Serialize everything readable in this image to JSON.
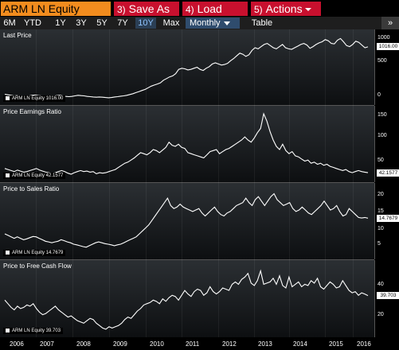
{
  "toolbar": {
    "ticker": "ARM LN Equity",
    "save_num": "3)",
    "save_label": "Save As",
    "load_num": "4)",
    "load_label": "Load",
    "actions_num": "5)",
    "actions_label": "Actions"
  },
  "ranges": [
    "6M",
    "YTD",
    "1Y",
    "3Y",
    "5Y",
    "7Y",
    "10Y",
    "Max"
  ],
  "active_range": "10Y",
  "frequency": "Monthly",
  "table_label": "Table",
  "more_label": "»",
  "years": [
    "2006",
    "2007",
    "2008",
    "2009",
    "2010",
    "2011",
    "2012",
    "2013",
    "2014",
    "2015",
    "2016"
  ],
  "panels": [
    {
      "title": "Last Price",
      "legend": "ARM LN Equity  1016.00",
      "last_value": "1016.00",
      "ticks": [
        "1000",
        "500",
        "0"
      ]
    },
    {
      "title": "Price Earnings Ratio",
      "legend": "ARM LN Equity  42.1577",
      "last_value": "42.1577",
      "ticks": [
        "150",
        "100",
        "50"
      ]
    },
    {
      "title": "Price to Sales Ratio",
      "legend": "ARM LN Equity  14.7679",
      "last_value": "14.7679",
      "ticks": [
        "20",
        "15",
        "10",
        "5"
      ]
    },
    {
      "title": "Price to Free Cash Flow",
      "legend": "ARM LN Equity  39.703",
      "last_value": "39.703",
      "ticks": [
        "40",
        "20"
      ]
    }
  ],
  "chart_data": [
    {
      "type": "line",
      "title": "Last Price",
      "series": [
        {
          "name": "ARM LN Equity",
          "values": [
            140,
            130,
            120,
            110,
            115,
            100,
            95,
            105,
            110,
            120,
            125,
            115,
            110,
            105,
            100,
            95,
            105,
            115,
            120,
            110,
            100,
            95,
            100,
            110,
            120,
            115,
            110,
            100,
            95,
            90,
            85,
            90,
            85,
            80,
            75,
            80,
            90,
            95,
            105,
            110,
            120,
            135,
            150,
            170,
            190,
            210,
            230,
            260,
            290,
            310,
            330,
            350,
            400,
            430,
            460,
            480,
            520,
            600,
            620,
            610,
            590,
            600,
            620,
            640,
            600,
            580,
            620,
            650,
            700,
            720,
            700,
            680,
            690,
            710,
            760,
            800,
            850,
            900,
            880,
            840,
            870,
            950,
            1000,
            980,
            1020,
            1060,
            1080,
            1040,
            1000,
            980,
            1020,
            1060,
            1000,
            980,
            970,
            1000,
            1030,
            1060,
            1080,
            1050,
            990,
            1020,
            1060,
            1090,
            1110,
            1150,
            1130,
            1080,
            1070,
            1140,
            1170,
            1110,
            1040,
            1020,
            1060,
            1120,
            1100,
            1050,
            1000,
            1016
          ]
        }
      ],
      "ylim": [
        0,
        1250
      ]
    },
    {
      "type": "line",
      "title": "Price Earnings Ratio",
      "series": [
        {
          "name": "ARM LN Equity",
          "values": [
            50,
            48,
            46,
            44,
            47,
            45,
            43,
            44,
            46,
            48,
            50,
            47,
            45,
            43,
            42,
            40,
            42,
            44,
            46,
            44,
            41,
            39,
            42,
            44,
            46,
            44,
            45,
            43,
            44,
            40,
            42,
            41,
            42,
            44,
            46,
            48,
            52,
            56,
            60,
            62,
            66,
            70,
            75,
            80,
            78,
            76,
            80,
            86,
            84,
            80,
            85,
            90,
            100,
            94,
            92,
            96,
            90,
            88,
            80,
            78,
            76,
            74,
            72,
            70,
            76,
            82,
            84,
            86,
            78,
            82,
            86,
            88,
            92,
            96,
            100,
            104,
            110,
            104,
            100,
            108,
            118,
            126,
            154,
            140,
            120,
            104,
            92,
            86,
            96,
            84,
            78,
            82,
            74,
            72,
            68,
            64,
            66,
            60,
            62,
            58,
            60,
            56,
            58,
            54,
            52,
            50,
            48,
            46,
            48,
            44,
            42,
            44,
            46,
            44,
            43,
            42
          ]
        }
      ],
      "ylim": [
        30,
        160
      ]
    },
    {
      "type": "line",
      "title": "Price to Sales Ratio",
      "series": [
        {
          "name": "ARM LN Equity",
          "values": [
            9.5,
            9,
            8.5,
            8,
            8.5,
            8,
            7.5,
            7.8,
            8.2,
            8.6,
            8.5,
            8,
            7.5,
            7,
            6.8,
            6.5,
            6.8,
            7,
            7.5,
            7.2,
            6.8,
            6.5,
            6,
            5.8,
            5.5,
            5.2,
            5,
            5.5,
            6,
            6.5,
            6.8,
            6.5,
            6.2,
            6,
            5.8,
            5.5,
            5.8,
            6,
            6.5,
            7,
            7.5,
            8,
            8.5,
            9.5,
            10.5,
            11.5,
            12.5,
            14,
            15.5,
            17,
            18.5,
            20,
            21.5,
            19,
            18,
            18.5,
            19.5,
            18.5,
            18,
            17.5,
            17,
            17.5,
            18,
            16.5,
            15.5,
            16.5,
            17.5,
            18.5,
            17,
            16,
            15.5,
            16.5,
            17,
            18,
            19,
            19.5,
            20,
            21.5,
            20,
            19,
            21,
            22,
            20.5,
            19,
            20.5,
            22,
            23,
            21,
            20,
            19,
            19.5,
            20,
            18,
            17,
            17.5,
            18.5,
            17.5,
            16.5,
            16,
            17,
            18,
            19,
            20.5,
            19,
            17.5,
            18,
            19,
            17,
            15.5,
            16,
            18,
            17,
            16,
            15,
            14.8,
            15,
            14.7679
          ]
        }
      ],
      "ylim": [
        2,
        25
      ]
    },
    {
      "type": "line",
      "title": "Price to Free Cash Flow",
      "series": [
        {
          "name": "ARM LN Equity",
          "values": [
            36,
            33,
            30,
            28,
            31,
            29,
            30,
            32,
            31,
            33,
            29,
            26,
            24,
            25,
            27,
            29,
            31,
            28,
            26,
            24,
            22,
            23,
            21,
            19,
            18,
            17,
            19,
            21,
            20,
            17,
            15,
            13,
            12,
            14,
            13,
            14,
            15,
            17,
            20,
            22,
            21,
            24,
            27,
            29,
            32,
            33,
            34,
            36,
            35,
            33,
            37,
            35,
            38,
            40,
            39,
            36,
            40,
            44,
            41,
            39,
            43,
            45,
            44,
            40,
            42,
            47,
            43,
            41,
            43,
            46,
            45,
            44,
            49,
            51,
            49,
            53,
            55,
            58,
            50,
            48,
            52,
            60,
            49,
            50,
            51,
            54,
            49,
            56,
            48,
            46,
            55,
            47,
            49,
            51,
            47,
            49,
            48,
            52,
            50,
            54,
            47,
            45,
            48,
            51,
            49,
            46,
            47,
            52,
            48,
            44,
            42,
            43,
            40,
            42,
            41,
            39.703
          ]
        }
      ],
      "ylim": [
        8,
        65
      ]
    }
  ]
}
